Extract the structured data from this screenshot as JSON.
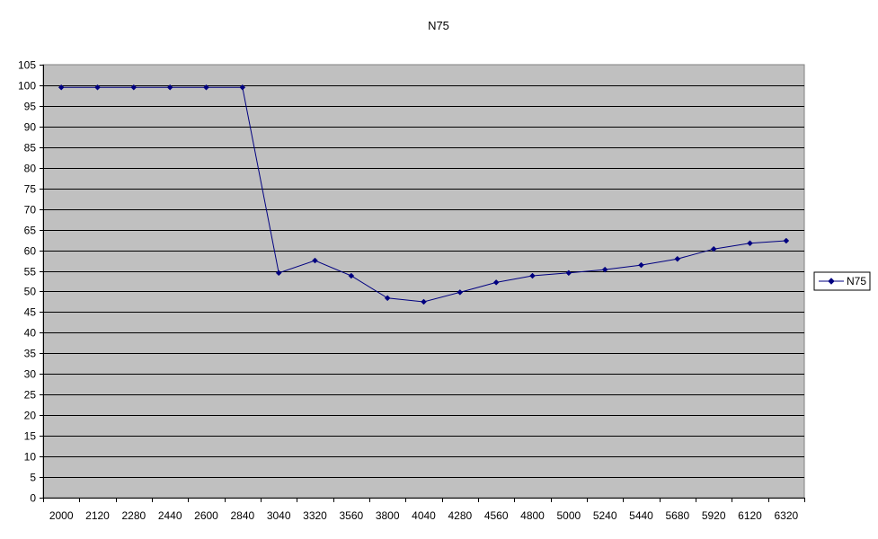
{
  "chart_data": {
    "type": "line",
    "title": "N75",
    "xlabel": "",
    "ylabel": "",
    "categories": [
      "2000",
      "2120",
      "2280",
      "2440",
      "2600",
      "2840",
      "3040",
      "3320",
      "3560",
      "3800",
      "4040",
      "4280",
      "4560",
      "4800",
      "5000",
      "5240",
      "5440",
      "5680",
      "5920",
      "6120",
      "6320"
    ],
    "series": [
      {
        "name": "N75",
        "values": [
          99.5,
          99.5,
          99.5,
          99.5,
          99.5,
          99.5,
          54.5,
          57.5,
          53.8,
          48.4,
          47.5,
          49.8,
          52.2,
          53.8,
          54.5,
          55.3,
          56.4,
          57.9,
          60.3,
          61.7,
          62.3
        ]
      }
    ],
    "ylim": [
      0,
      105
    ],
    "yticks": [
      0,
      5,
      10,
      15,
      20,
      25,
      30,
      35,
      40,
      45,
      50,
      55,
      60,
      65,
      70,
      75,
      80,
      85,
      90,
      95,
      100,
      105
    ],
    "grid": "horizontal",
    "legend": "right",
    "colors": {
      "plot_background": "#c0c0c0",
      "gridline": "#000000",
      "series_line": "#000080"
    }
  }
}
